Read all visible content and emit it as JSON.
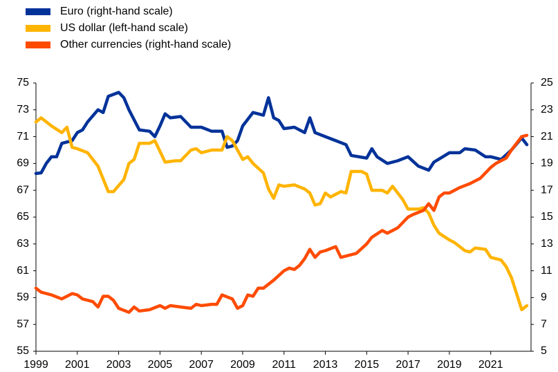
{
  "chart_data": {
    "type": "line",
    "xlim": [
      1999,
      2022.95
    ],
    "xticks": [
      1999,
      2001,
      2003,
      2005,
      2007,
      2009,
      2011,
      2013,
      2015,
      2017,
      2019,
      2021
    ],
    "ylim": [
      55,
      75
    ],
    "yticks": [
      55,
      57,
      59,
      61,
      63,
      65,
      67,
      69,
      71,
      73,
      75
    ],
    "y2lim": [
      5,
      25
    ],
    "y2ticks": [
      5,
      7,
      9,
      11,
      13,
      15,
      17,
      19,
      21,
      23,
      25
    ],
    "grid": false,
    "legend": "top-left",
    "series": [
      {
        "name": "Euro (right-hand scale)",
        "color": "#003299",
        "axis": "y2",
        "x": [
          1999,
          1999.25,
          1999.5,
          1999.75,
          2000,
          2000.25,
          2000.75,
          2001,
          2001.25,
          2001.5,
          2002,
          2002.25,
          2002.5,
          2003,
          2003.25,
          2003.5,
          2004,
          2004.5,
          2004.75,
          2005,
          2005.25,
          2005.5,
          2006,
          2006.5,
          2007,
          2007.5,
          2008,
          2008.25,
          2008.5,
          2008.75,
          2009,
          2009.5,
          2010,
          2010.25,
          2010.5,
          2010.75,
          2011,
          2011.5,
          2012,
          2012.25,
          2012.5,
          2013,
          2013.5,
          2014,
          2014.25,
          2015,
          2015.25,
          2015.5,
          2016,
          2016.5,
          2017,
          2017.5,
          2018,
          2018.25,
          2019,
          2019.5,
          2019.75,
          2020.25,
          2020.75,
          2021,
          2021.5,
          2022,
          2022.5,
          2022.75
        ],
        "values": [
          18.25,
          18.3,
          19.0,
          19.5,
          19.5,
          20.5,
          20.7,
          21.3,
          21.5,
          22.1,
          23.0,
          22.8,
          24.0,
          24.3,
          23.9,
          23.0,
          21.5,
          21.4,
          21.0,
          21.8,
          22.7,
          22.4,
          22.5,
          21.7,
          21.7,
          21.4,
          21.4,
          20.2,
          20.3,
          20.7,
          21.8,
          22.8,
          22.6,
          23.9,
          22.4,
          22.2,
          21.6,
          21.7,
          21.3,
          22.4,
          21.3,
          21.0,
          20.7,
          20.4,
          19.6,
          19.4,
          20.1,
          19.5,
          19.0,
          19.2,
          19.5,
          18.8,
          18.5,
          19.1,
          19.8,
          19.8,
          20.1,
          20.0,
          19.5,
          19.5,
          19.3,
          20.0,
          20.9,
          20.4
        ]
      },
      {
        "name": "US dollar (left-hand scale)",
        "color": "#ffb400",
        "x": [
          1999,
          1999.25,
          1999.75,
          2000.25,
          2000.5,
          2000.75,
          2001,
          2001.5,
          2002,
          2002.5,
          2002.75,
          2003.25,
          2003.5,
          2003.75,
          2004,
          2004.5,
          2004.75,
          2005,
          2005.25,
          2005.75,
          2006,
          2006.5,
          2006.75,
          2007,
          2007.5,
          2008,
          2008.25,
          2008.5,
          2009,
          2009.25,
          2009.5,
          2010,
          2010.25,
          2010.5,
          2010.75,
          2011,
          2011.5,
          2012,
          2012.25,
          2012.5,
          2012.75,
          2013,
          2013.25,
          2013.75,
          2014,
          2014.25,
          2014.75,
          2015,
          2015.25,
          2015.75,
          2016,
          2016.25,
          2016.75,
          2017,
          2017.5,
          2017.75,
          2018,
          2018.25,
          2018.5,
          2019,
          2019.25,
          2019.75,
          2020,
          2020.25,
          2020.75,
          2021,
          2021.5,
          2021.75,
          2022,
          2022.25,
          2022.5,
          2022.75
        ],
        "values": [
          72.1,
          72.4,
          71.8,
          71.3,
          71.7,
          70.2,
          70.1,
          69.8,
          68.8,
          66.9,
          66.9,
          67.8,
          69.0,
          69.3,
          70.5,
          70.5,
          70.7,
          69.9,
          69.1,
          69.2,
          69.2,
          70.0,
          70.1,
          69.8,
          70.0,
          70.0,
          71.0,
          70.7,
          69.3,
          69.5,
          69.0,
          68.3,
          67.1,
          66.4,
          67.4,
          67.3,
          67.4,
          67.1,
          66.8,
          65.9,
          66.0,
          66.8,
          66.5,
          66.9,
          66.8,
          68.4,
          68.4,
          68.2,
          67.0,
          67.0,
          66.8,
          67.3,
          66.3,
          65.6,
          65.6,
          65.7,
          65.3,
          64.4,
          63.8,
          63.3,
          63.1,
          62.5,
          62.4,
          62.7,
          62.6,
          62.0,
          61.8,
          61.3,
          60.5,
          59.3,
          58.1,
          58.4
        ]
      },
      {
        "name": "Other currencies (right-hand scale)",
        "color": "#ff4b00",
        "axis": "y2",
        "x": [
          1999,
          1999.25,
          1999.75,
          2000.25,
          2000.75,
          2001,
          2001.25,
          2001.75,
          2002,
          2002.25,
          2002.5,
          2002.75,
          2003,
          2003.5,
          2003.75,
          2004,
          2004.5,
          2005,
          2005.25,
          2005.5,
          2006,
          2006.5,
          2006.75,
          2007,
          2007.5,
          2007.75,
          2008,
          2008.5,
          2008.75,
          2009,
          2009.25,
          2009.5,
          2009.75,
          2010,
          2010.5,
          2011,
          2011.25,
          2011.5,
          2011.75,
          2012,
          2012.25,
          2012.5,
          2012.75,
          2013,
          2013.5,
          2013.75,
          2014,
          2014.5,
          2015,
          2015.25,
          2015.75,
          2016,
          2016.5,
          2017,
          2017.25,
          2017.75,
          2018,
          2018.25,
          2018.5,
          2018.75,
          2019,
          2019.5,
          2020,
          2020.5,
          2021,
          2021.25,
          2021.75,
          2022,
          2022.5,
          2022.75
        ],
        "values": [
          9.7,
          9.4,
          9.2,
          8.9,
          9.3,
          9.2,
          8.9,
          8.7,
          8.3,
          9.1,
          9.1,
          8.8,
          8.2,
          7.9,
          8.3,
          8.0,
          8.1,
          8.4,
          8.2,
          8.4,
          8.3,
          8.2,
          8.5,
          8.4,
          8.5,
          8.5,
          9.2,
          8.9,
          8.2,
          8.4,
          9.2,
          9.1,
          9.7,
          9.7,
          10.3,
          11.0,
          11.2,
          11.1,
          11.4,
          11.9,
          12.6,
          12.0,
          12.4,
          12.5,
          12.8,
          12.0,
          12.1,
          12.3,
          13.0,
          13.5,
          14.0,
          13.8,
          14.2,
          15.0,
          15.2,
          15.5,
          16.0,
          15.5,
          16.5,
          16.8,
          16.8,
          17.2,
          17.5,
          17.9,
          18.7,
          19.0,
          19.4,
          20.0,
          21.0,
          21.1
        ]
      }
    ]
  }
}
